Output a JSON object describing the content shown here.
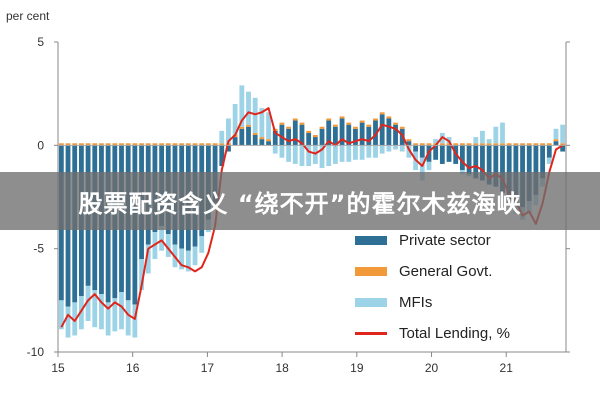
{
  "overlay": {
    "text": "股票配资含义 “绕不开”的霍尔木兹海峡"
  },
  "chart_data": {
    "type": "bar",
    "ylabel": "per cent",
    "ylim": [
      -10,
      5
    ],
    "yticks": [
      5,
      0,
      -5,
      -10
    ],
    "x_start": 15,
    "x_end": 21.8,
    "xticks": [
      "15",
      "16",
      "17",
      "18",
      "19",
      "20",
      "21"
    ],
    "grid": false,
    "legend_position": "bottom-right",
    "colors": {
      "private": "#2e6f95",
      "govt": "#f29a3a",
      "mfi": "#9dd3e6",
      "total": "#e0261c"
    },
    "series": [
      {
        "name": "Private sector",
        "type": "bar",
        "values": [
          -7.5,
          -7.8,
          -7.6,
          -7.3,
          -6.8,
          -7.0,
          -7.2,
          -7.6,
          -7.4,
          -7.1,
          -7.5,
          -7.7,
          -5.5,
          -4.8,
          -4.2,
          -3.9,
          -4.3,
          -4.8,
          -5.0,
          -5.1,
          -4.9,
          -4.4,
          -3.6,
          -2.8,
          -1.0,
          -0.3,
          0.4,
          0.8,
          0.9,
          0.5,
          0.3,
          0.2,
          0.7,
          1.0,
          0.8,
          1.2,
          1.0,
          0.6,
          0.4,
          0.8,
          1.2,
          0.9,
          1.3,
          1.0,
          0.8,
          1.1,
          0.9,
          1.2,
          1.5,
          1.3,
          1.0,
          0.8,
          0.2,
          -0.3,
          -0.6,
          -0.8,
          -0.7,
          -0.9,
          -0.8,
          -0.9,
          -1.2,
          -1.4,
          -1.6,
          -1.7,
          -1.9,
          -2.0,
          -2.3,
          -2.6,
          -2.8,
          -3.0,
          -2.7,
          -2.4,
          -1.6,
          -0.6,
          0.2,
          -0.3
        ]
      },
      {
        "name": "General Govt.",
        "type": "bar",
        "values": [
          0.1,
          0.1,
          0.1,
          0.1,
          0.1,
          0.1,
          0.1,
          0.1,
          0.1,
          0.1,
          0.1,
          0.1,
          0.1,
          0.1,
          0.1,
          0.1,
          0.1,
          0.1,
          0.1,
          0.1,
          0.1,
          0.1,
          0.1,
          0.1,
          0.1,
          0.1,
          0.1,
          0.1,
          0.1,
          0.1,
          0.1,
          0.1,
          0.1,
          0.1,
          0.1,
          0.1,
          0.1,
          0.1,
          0.1,
          0.1,
          0.1,
          0.1,
          0.1,
          0.1,
          0.1,
          0.1,
          0.1,
          0.1,
          0.1,
          0.1,
          0.1,
          0.1,
          0.1,
          0.1,
          0.1,
          0.1,
          0.1,
          0.1,
          0.1,
          0.1,
          0.1,
          0.1,
          0.1,
          0.1,
          0.1,
          0.1,
          0.1,
          0.1,
          0.1,
          0.1,
          0.1,
          0.1,
          0.1,
          0.1,
          0.1,
          0.1
        ]
      },
      {
        "name": "MFIs",
        "type": "bar",
        "values": [
          -1.4,
          -1.5,
          -1.6,
          -1.6,
          -1.7,
          -1.8,
          -1.7,
          -1.6,
          -1.6,
          -1.8,
          -1.7,
          -1.6,
          -1.5,
          -1.4,
          -1.3,
          -1.2,
          -1.1,
          -1.1,
          -1.0,
          -1.0,
          -0.9,
          -0.8,
          -0.6,
          -0.3,
          0.6,
          1.2,
          1.5,
          2.0,
          1.6,
          1.7,
          1.4,
          1.3,
          -0.4,
          -0.6,
          -0.8,
          -0.9,
          -1.0,
          -1.0,
          -0.9,
          -1.1,
          -1.0,
          -0.9,
          -0.8,
          -0.8,
          -0.7,
          -0.7,
          -0.6,
          -0.6,
          -0.4,
          -0.3,
          -0.2,
          -0.3,
          -0.6,
          -0.9,
          -1.1,
          -0.4,
          0.2,
          0.5,
          0.3,
          0.0,
          -0.2,
          -0.1,
          0.3,
          0.6,
          0.2,
          0.8,
          1.0,
          -0.3,
          -0.5,
          -0.6,
          -0.6,
          -0.5,
          -0.4,
          -0.3,
          0.5,
          0.9
        ]
      },
      {
        "name": "Total Lending, %",
        "type": "line",
        "values": [
          -8.8,
          -8.2,
          -8.5,
          -8.0,
          -7.5,
          -7.2,
          -7.6,
          -7.9,
          -7.6,
          -7.8,
          -8.2,
          -8.4,
          -6.8,
          -5.0,
          -4.8,
          -4.6,
          -5.0,
          -5.4,
          -5.8,
          -5.9,
          -6.1,
          -5.9,
          -5.2,
          -3.9,
          -1.2,
          0.2,
          0.5,
          1.2,
          1.6,
          1.5,
          1.6,
          1.8,
          0.6,
          0.4,
          0.2,
          0.3,
          0.1,
          -0.3,
          -0.4,
          -0.2,
          0.2,
          0.0,
          0.3,
          0.1,
          0.2,
          0.3,
          0.2,
          0.5,
          1.0,
          0.9,
          0.8,
          0.5,
          -0.2,
          -0.7,
          -1.0,
          -0.3,
          0.0,
          0.4,
          0.2,
          -0.4,
          -0.8,
          -1.1,
          -1.0,
          -1.2,
          -1.6,
          -1.4,
          -1.6,
          -2.4,
          -2.7,
          -3.4,
          -3.2,
          -3.8,
          -2.8,
          -1.3,
          -0.2,
          0.0
        ]
      }
    ]
  }
}
